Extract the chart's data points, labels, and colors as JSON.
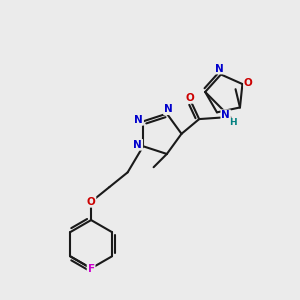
{
  "bg_color": "#ebebeb",
  "bond_color": "#1a1a1a",
  "bond_width": 1.5,
  "atom_colors": {
    "C": "#1a1a1a",
    "N": "#0000cc",
    "O": "#cc0000",
    "F": "#cc00cc",
    "H": "#008080"
  }
}
